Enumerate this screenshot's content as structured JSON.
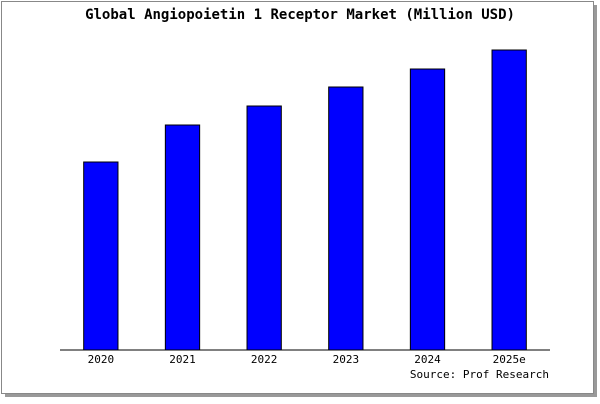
{
  "chart_data": {
    "type": "bar",
    "title": "Global Angiopoietin 1 Receptor Market (Million USD)",
    "categories": [
      "2020",
      "2021",
      "2022",
      "2023",
      "2024",
      "2025e"
    ],
    "values": [
      188,
      225,
      244,
      263,
      281,
      300
    ],
    "color": "#0000ff",
    "ylim": [
      0,
      305
    ],
    "source": "Source: Prof Research"
  }
}
